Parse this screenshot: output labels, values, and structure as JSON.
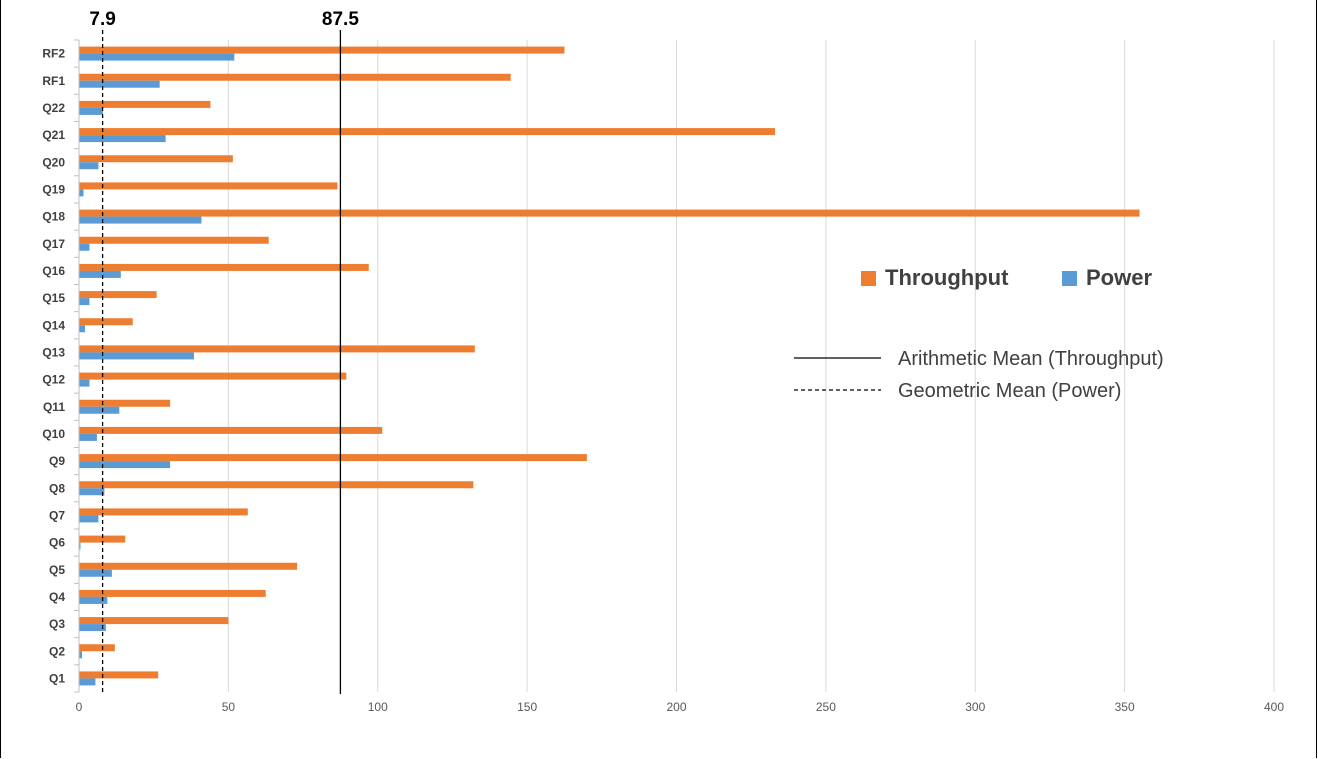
{
  "chart_data": {
    "type": "bar",
    "orientation": "horizontal",
    "categories": [
      "Q1",
      "Q2",
      "Q3",
      "Q4",
      "Q5",
      "Q6",
      "Q7",
      "Q8",
      "Q9",
      "Q10",
      "Q11",
      "Q12",
      "Q13",
      "Q14",
      "Q15",
      "Q16",
      "Q17",
      "Q18",
      "Q19",
      "Q20",
      "Q21",
      "Q22",
      "RF1",
      "RF2"
    ],
    "series": [
      {
        "name": "Throughput",
        "color": "#ED7D31",
        "values": [
          26.5,
          12,
          50,
          62.5,
          73,
          15.5,
          56.5,
          132,
          170,
          101.5,
          30.5,
          89.5,
          132.5,
          18,
          26,
          97,
          63.5,
          355,
          86.5,
          51.5,
          233,
          44,
          144.5,
          162.5
        ]
      },
      {
        "name": "Power",
        "color": "#5B9BD5",
        "values": [
          5.5,
          1,
          9,
          9.5,
          11,
          0.5,
          6.5,
          8.5,
          30.5,
          6,
          13.5,
          3.5,
          38.5,
          2,
          3.5,
          14,
          3.5,
          41,
          1.5,
          6.5,
          29,
          8,
          27,
          52
        ]
      }
    ],
    "xlim": [
      0,
      400
    ],
    "xticks": [
      0,
      50,
      100,
      150,
      200,
      250,
      300,
      350,
      400
    ],
    "grid": true,
    "legend_position": "right",
    "reference_lines": [
      {
        "name": "Arithmetic Mean (Throughput)",
        "value": 87.5,
        "label": "87.5",
        "style": "solid"
      },
      {
        "name": "Geometric Mean (Power)",
        "value": 7.9,
        "label": "7.9",
        "style": "dashed"
      }
    ]
  }
}
